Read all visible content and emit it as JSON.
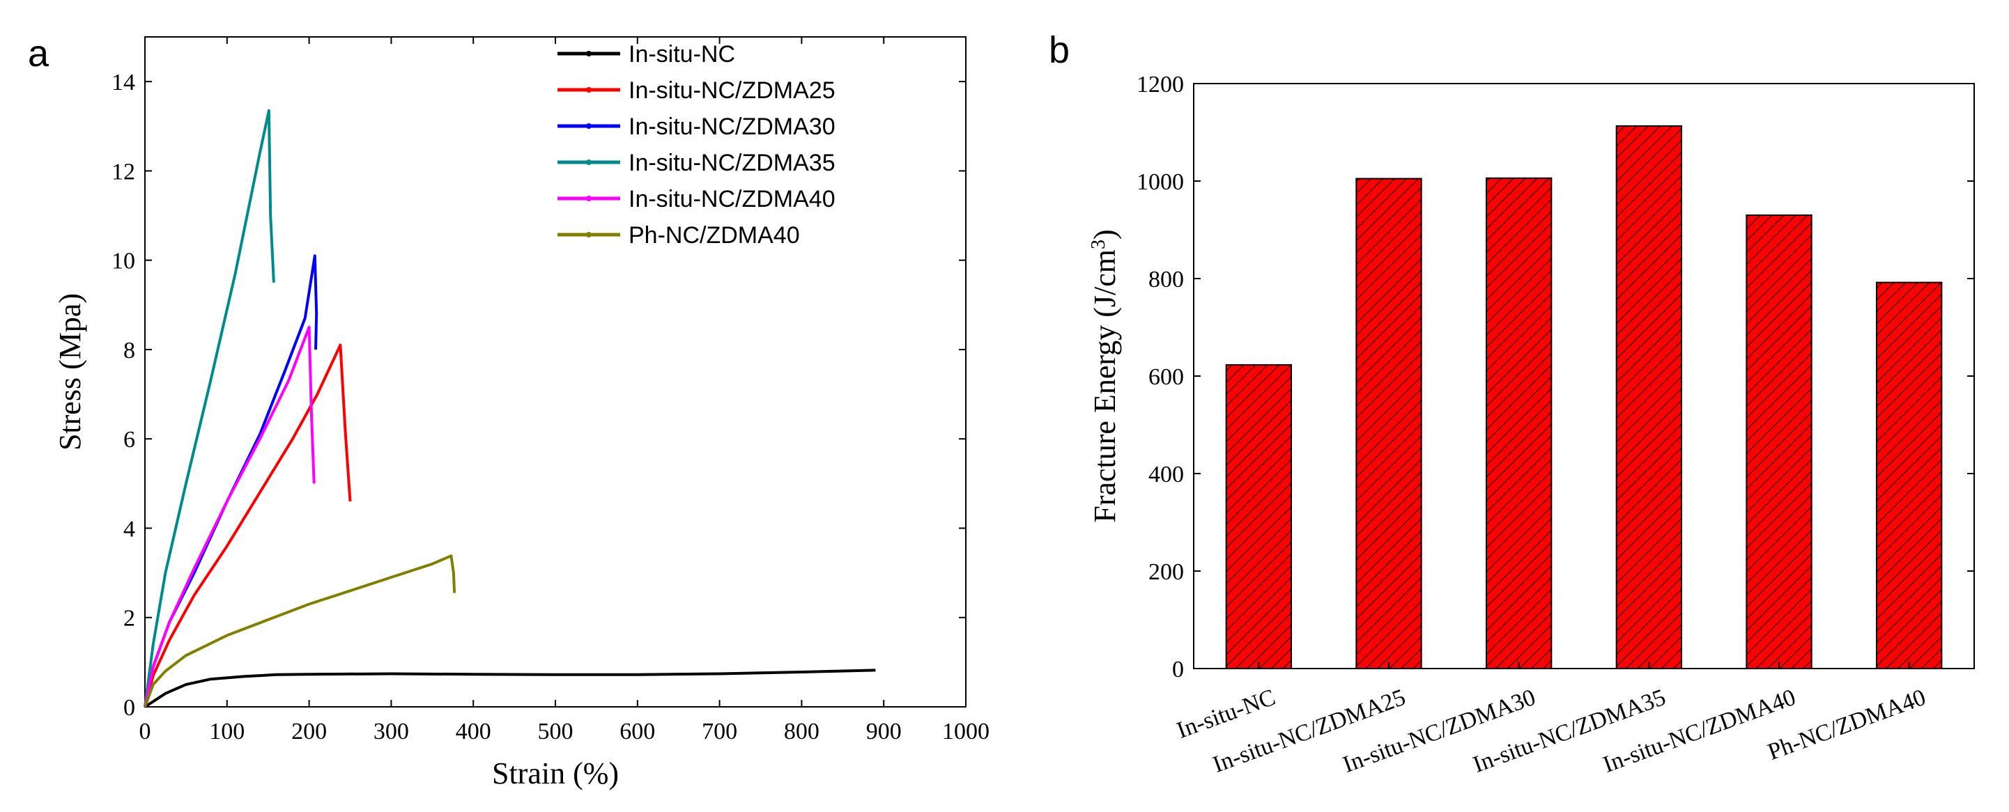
{
  "chart_data": [
    {
      "panel": "a",
      "type": "line",
      "title": "",
      "xlabel": "Strain (%)",
      "ylabel": "Stress (Mpa)",
      "xlim": [
        0,
        1000
      ],
      "ylim": [
        0,
        15
      ],
      "xticks": [
        0,
        100,
        200,
        300,
        400,
        500,
        600,
        700,
        800,
        900,
        1000
      ],
      "yticks": [
        0,
        2,
        4,
        6,
        8,
        10,
        12,
        14
      ],
      "legend_position": "top-right",
      "series": [
        {
          "name": "In-situ-NC",
          "color": "#000000",
          "x": [
            0,
            10,
            25,
            50,
            80,
            120,
            160,
            200,
            300,
            400,
            500,
            600,
            700,
            800,
            890
          ],
          "y": [
            0,
            0.12,
            0.3,
            0.5,
            0.62,
            0.68,
            0.72,
            0.73,
            0.74,
            0.73,
            0.72,
            0.72,
            0.74,
            0.78,
            0.82
          ]
        },
        {
          "name": "In-situ-NC/ZDMA25",
          "color": "#ff0000",
          "x": [
            0,
            10,
            30,
            60,
            100,
            140,
            180,
            210,
            238,
            244,
            250
          ],
          "y": [
            0,
            0.7,
            1.5,
            2.5,
            3.6,
            4.8,
            6.0,
            7.0,
            8.1,
            6.2,
            4.6
          ]
        },
        {
          "name": "In-situ-NC/ZDMA30",
          "color": "#0000ff",
          "x": [
            0,
            10,
            30,
            60,
            100,
            140,
            170,
            195,
            207,
            209,
            208
          ],
          "y": [
            0,
            0.9,
            1.9,
            3.0,
            4.6,
            6.1,
            7.5,
            8.7,
            10.1,
            8.8,
            8.0
          ]
        },
        {
          "name": "In-situ-NC/ZDMA35",
          "color": "#008b8b",
          "x": [
            0,
            10,
            25,
            50,
            80,
            110,
            140,
            151,
            153,
            157
          ],
          "y": [
            0,
            1.4,
            3.0,
            5.0,
            7.3,
            9.7,
            12.4,
            13.35,
            11.0,
            9.5
          ]
        },
        {
          "name": "In-situ-NC/ZDMA40",
          "color": "#ff00ff",
          "x": [
            0,
            10,
            30,
            60,
            100,
            140,
            175,
            200,
            203,
            206
          ],
          "y": [
            0,
            0.9,
            1.9,
            3.1,
            4.6,
            6.0,
            7.3,
            8.5,
            6.5,
            5.0
          ]
        },
        {
          "name": "Ph-NC/ZDMA40",
          "color": "#808000",
          "x": [
            0,
            10,
            25,
            50,
            100,
            150,
            200,
            250,
            300,
            350,
            373,
            376,
            377
          ],
          "y": [
            0,
            0.5,
            0.8,
            1.15,
            1.6,
            1.95,
            2.3,
            2.6,
            2.9,
            3.2,
            3.38,
            3.0,
            2.55
          ]
        }
      ]
    },
    {
      "panel": "b",
      "type": "bar",
      "title": "",
      "xlabel": "",
      "ylabel": "Fracture Energy (J/cm",
      "ylabel_sup": "3",
      "ylabel_suffix": ")",
      "ylim": [
        0,
        1200
      ],
      "yticks": [
        0,
        200,
        400,
        600,
        800,
        1000,
        1200
      ],
      "categories": [
        "In-situ-NC",
        "In-situ-NC/ZDMA25",
        "In-situ-NC/ZDMA30",
        "In-situ-NC/ZDMA35",
        "In-situ-NC/ZDMA40",
        "Ph-NC/ZDMA40"
      ],
      "values": [
        623,
        1005,
        1006,
        1113,
        930,
        792
      ],
      "bar_color": "#ff0000",
      "hatch_color": "#550000"
    }
  ],
  "labels": {
    "panel_a": "a",
    "panel_b": "b"
  }
}
